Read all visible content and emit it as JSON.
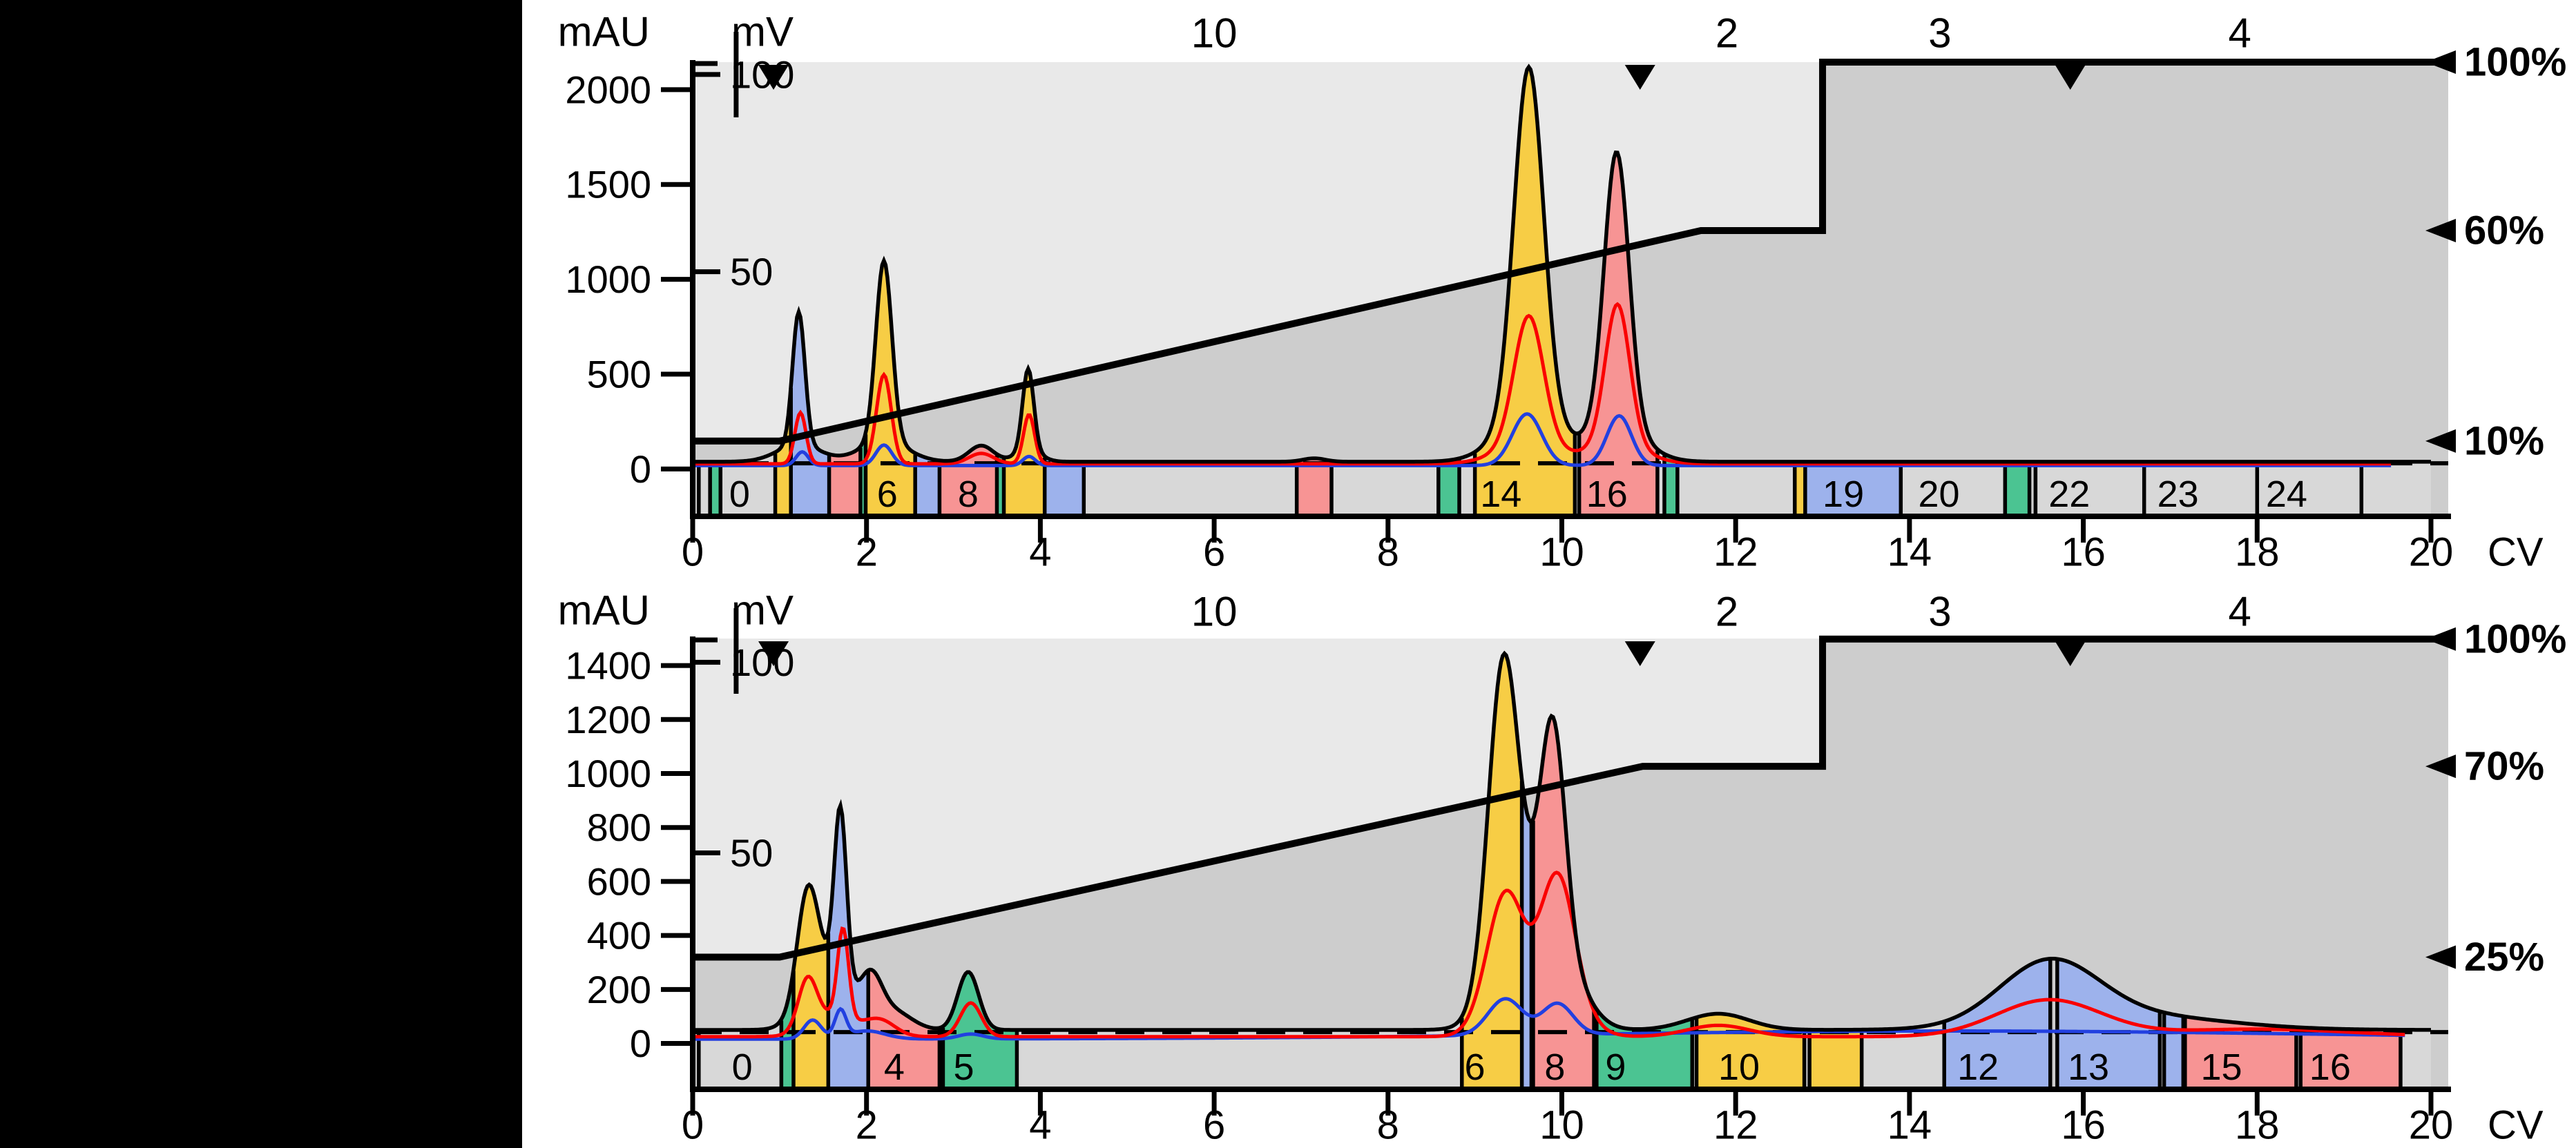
{
  "figure": {
    "kind": "dual-panel chromatogram (ion-exchange purification, UV traces vs column volume)",
    "x_unit_label": "CV",
    "left_axis_label": "mAU",
    "secondary_axis_label": "mV"
  },
  "style": {
    "bg_white": "#ffffff",
    "black": "#000000",
    "bg_above_gradient": "#e9e9e9",
    "bg_below_gradient": "#cdcdcd",
    "fraction_gray": "#d8d8d8",
    "fraction_yellow": "#f7cd45",
    "fraction_red": "#f79494",
    "fraction_blue": "#9db2ec",
    "fraction_green": "#4bc492",
    "trace_red": "#fa0000",
    "trace_blue": "#2240e0",
    "trace_black": "#000000"
  },
  "chart_data": [
    {
      "id": "top-panel",
      "type": "area",
      "title": "",
      "xlabel": "CV",
      "ylabel": "mAU",
      "y2label": "mV",
      "x_ticks": [
        0,
        2,
        4,
        6,
        8,
        10,
        12,
        14,
        16,
        18,
        20
      ],
      "xlim": [
        0,
        20
      ],
      "ylim": [
        -250,
        2145
      ],
      "y_ticks": [
        0,
        500,
        1000,
        1500,
        2000
      ],
      "mv_ticks": [
        {
          "label": "50",
          "v": 1040
        },
        {
          "label": "100",
          "v": 2080
        }
      ],
      "pct_map": {
        "p0_v": -75,
        "p100_v": 2145
      },
      "right_labels": [
        {
          "pct": 100,
          "text": "100%"
        },
        {
          "pct": 60,
          "text": "60%"
        },
        {
          "pct": 10,
          "text": "10%"
        }
      ],
      "header_labels": [
        {
          "cv": 6.0,
          "text": "10"
        },
        {
          "cv": 11.9,
          "text": "2"
        },
        {
          "cv": 14.35,
          "text": "3"
        },
        {
          "cv": 17.8,
          "text": "4"
        }
      ],
      "down_markers_cv": [
        0.93,
        10.9,
        15.85
      ],
      "event_tick_cv": 0.5,
      "dashed_v": 30,
      "gradient_pct": [
        [
          0,
          10
        ],
        [
          1,
          10
        ],
        [
          11.6,
          60
        ],
        [
          13,
          60
        ],
        [
          13,
          100
        ],
        [
          20.2,
          100
        ]
      ],
      "curves": {
        "black": {
          "base": 38,
          "end": 20,
          "peaks": [
            [
              1.22,
              700,
              0.1
            ],
            [
              1.22,
              90,
              0.35
            ],
            [
              2.2,
              950,
              0.13
            ],
            [
              2.2,
              110,
              0.38
            ],
            [
              3.32,
              85,
              0.2
            ],
            [
              3.86,
              430,
              0.09
            ],
            [
              3.86,
              60,
              0.2
            ],
            [
              7.15,
              18,
              0.18
            ],
            [
              9.62,
              1850,
              0.24
            ],
            [
              9.62,
              230,
              0.5
            ],
            [
              10.63,
              1450,
              0.2
            ],
            [
              10.63,
              180,
              0.45
            ]
          ]
        },
        "red": {
          "base": 27,
          "end": 19.55,
          "peaks": [
            [
              1.24,
              270,
              0.09
            ],
            [
              2.2,
              470,
              0.12
            ],
            [
              3.32,
              55,
              0.2
            ],
            [
              3.87,
              260,
              0.09
            ],
            [
              9.62,
              680,
              0.24
            ],
            [
              9.62,
              100,
              0.5
            ],
            [
              10.64,
              740,
              0.2
            ],
            [
              10.64,
              100,
              0.45
            ]
          ]
        },
        "blue": {
          "base": 18,
          "end": 19.55,
          "peaks": [
            [
              1.26,
              72,
              0.1
            ],
            [
              2.2,
              108,
              0.13
            ],
            [
              3.87,
              48,
              0.1
            ],
            [
              9.6,
              272,
              0.24
            ],
            [
              10.66,
              262,
              0.2
            ]
          ]
        }
      },
      "fractions": [
        {
          "x0": 0.07,
          "x1": 0.2,
          "color": "gray",
          "label": ""
        },
        {
          "x0": 0.2,
          "x1": 0.32,
          "color": "green",
          "label": ""
        },
        {
          "x0": 0.32,
          "x1": 0.95,
          "color": "gray",
          "label": "0",
          "label_cv": 0.42
        },
        {
          "x0": 0.95,
          "x1": 1.13,
          "color": "yellow",
          "label": ""
        },
        {
          "x0": 1.13,
          "x1": 1.57,
          "color": "blue",
          "label": ""
        },
        {
          "x0": 1.57,
          "x1": 1.93,
          "color": "red",
          "label": ""
        },
        {
          "x0": 1.93,
          "x1": 1.99,
          "color": "green",
          "label": ""
        },
        {
          "x0": 1.99,
          "x1": 2.56,
          "color": "yellow",
          "label": "6",
          "label_cv": 2.12
        },
        {
          "x0": 2.56,
          "x1": 2.84,
          "color": "blue",
          "label": ""
        },
        {
          "x0": 2.84,
          "x1": 3.5,
          "color": "red",
          "label": "8",
          "label_cv": 3.05
        },
        {
          "x0": 3.5,
          "x1": 3.58,
          "color": "green",
          "label": ""
        },
        {
          "x0": 3.58,
          "x1": 4.05,
          "color": "yellow",
          "label": ""
        },
        {
          "x0": 4.05,
          "x1": 4.5,
          "color": "blue",
          "label": ""
        },
        {
          "x0": 4.5,
          "x1": 6.95,
          "color": "gray",
          "label": ""
        },
        {
          "x0": 6.95,
          "x1": 7.35,
          "color": "red",
          "label": ""
        },
        {
          "x0": 7.35,
          "x1": 8.58,
          "color": "gray",
          "label": ""
        },
        {
          "x0": 8.58,
          "x1": 8.82,
          "color": "green",
          "label": ""
        },
        {
          "x0": 8.82,
          "x1": 9.0,
          "color": "gray",
          "label": ""
        },
        {
          "x0": 9.0,
          "x1": 10.15,
          "color": "yellow",
          "label": "14",
          "label_cv": 9.06
        },
        {
          "x0": 10.2,
          "x1": 11.1,
          "color": "red",
          "label": "16",
          "label_cv": 10.28
        },
        {
          "x0": 11.1,
          "x1": 11.18,
          "color": "gray",
          "label": ""
        },
        {
          "x0": 11.18,
          "x1": 11.33,
          "color": "green",
          "label": ""
        },
        {
          "x0": 11.33,
          "x1": 12.68,
          "color": "gray",
          "label": ""
        },
        {
          "x0": 12.68,
          "x1": 12.8,
          "color": "yellow",
          "label": ""
        },
        {
          "x0": 12.8,
          "x1": 13.9,
          "color": "blue",
          "label": "19",
          "label_cv": 13.0
        },
        {
          "x0": 13.9,
          "x1": 15.1,
          "color": "gray",
          "label": "20",
          "label_cv": 14.1
        },
        {
          "x0": 15.1,
          "x1": 15.38,
          "color": "green",
          "label": ""
        },
        {
          "x0": 15.45,
          "x1": 16.7,
          "color": "gray",
          "label": "22",
          "label_cv": 15.6
        },
        {
          "x0": 16.7,
          "x1": 18.0,
          "color": "gray",
          "label": "23",
          "label_cv": 16.85
        },
        {
          "x0": 18.0,
          "x1": 19.2,
          "color": "gray",
          "label": "24",
          "label_cv": 18.1
        },
        {
          "x0": 19.2,
          "x1": 20.0,
          "color": "gray",
          "label": ""
        }
      ]
    },
    {
      "id": "bottom-panel",
      "type": "area",
      "title": "",
      "xlabel": "CV",
      "ylabel": "mAU",
      "y2label": "mV",
      "x_ticks": [
        0,
        2,
        4,
        6,
        8,
        10,
        12,
        14,
        16,
        18,
        20
      ],
      "xlim": [
        0,
        20
      ],
      "ylim": [
        -170,
        1500
      ],
      "y_ticks": [
        0,
        200,
        400,
        600,
        800,
        1000,
        1200,
        1400
      ],
      "mv_ticks": [
        {
          "label": "50",
          "v": 706
        },
        {
          "label": "100",
          "v": 1412
        }
      ],
      "pct_map": {
        "p0_v": -73,
        "p100_v": 1498
      },
      "right_labels": [
        {
          "pct": 100,
          "text": "100%"
        },
        {
          "pct": 70,
          "text": "70%"
        },
        {
          "pct": 25,
          "text": "25%"
        }
      ],
      "header_labels": [
        {
          "cv": 6.0,
          "text": "10"
        },
        {
          "cv": 11.9,
          "text": "2"
        },
        {
          "cv": 14.35,
          "text": "3"
        },
        {
          "cv": 17.8,
          "text": "4"
        }
      ],
      "down_markers_cv": [
        0.93,
        10.9,
        15.85
      ],
      "event_tick_cv": 0.5,
      "dashed_v": 42,
      "gradient_pct": [
        [
          0,
          25
        ],
        [
          1,
          25
        ],
        [
          10.93,
          70
        ],
        [
          13,
          70
        ],
        [
          13,
          100
        ],
        [
          20.2,
          100
        ]
      ],
      "curves": {
        "black": {
          "base": 50,
          "end": 20,
          "peaks": [
            [
              1.32,
              390,
              0.17
            ],
            [
              1.7,
              640,
              0.1
            ],
            [
              1.55,
              220,
              0.35
            ],
            [
              2.05,
              160,
              0.18
            ],
            [
              2.3,
              70,
              0.3
            ],
            [
              3.17,
              215,
              0.17
            ],
            [
              9.32,
              1100,
              0.24
            ],
            [
              9.9,
              800,
              0.2
            ],
            [
              9.6,
              420,
              0.45
            ],
            [
              10.1,
              120,
              0.35
            ],
            [
              11.8,
              60,
              0.5
            ],
            [
              15.6,
              225,
              0.8
            ],
            [
              16.5,
              55,
              1.5
            ]
          ]
        },
        "red": {
          "base": 25,
          "end": 19.7,
          "peaks": [
            [
              1.32,
              180,
              0.15
            ],
            [
              1.73,
              330,
              0.09
            ],
            [
              1.6,
              80,
              0.35
            ],
            [
              2.15,
              60,
              0.25
            ],
            [
              3.2,
              125,
              0.17
            ],
            [
              9.35,
              480,
              0.3
            ],
            [
              9.95,
              520,
              0.28
            ],
            [
              9.6,
              70,
              0.5
            ],
            [
              10.15,
              50,
              0.35
            ],
            [
              11.8,
              42,
              0.5
            ],
            [
              15.6,
              135,
              0.85
            ],
            [
              18.0,
              28,
              1.5
            ]
          ]
        },
        "blue": {
          "base": 16,
          "end": 19.7,
          "peaks": [
            [
              1.38,
              70,
              0.14
            ],
            [
              1.7,
              100,
              0.09
            ],
            [
              2.0,
              30,
              0.3
            ],
            [
              3.2,
              18,
              0.2
            ],
            [
              9.35,
              135,
              0.28
            ],
            [
              9.95,
              115,
              0.25
            ],
            [
              14.5,
              30,
              6.0
            ]
          ]
        }
      },
      "fractions": [
        {
          "x0": 0.07,
          "x1": 1.02,
          "color": "gray",
          "label": "0",
          "label_cv": 0.45
        },
        {
          "x0": 1.02,
          "x1": 1.16,
          "color": "green",
          "label": ""
        },
        {
          "x0": 1.16,
          "x1": 1.56,
          "color": "yellow",
          "label": ""
        },
        {
          "x0": 1.56,
          "x1": 2.02,
          "color": "blue",
          "label": ""
        },
        {
          "x0": 2.02,
          "x1": 2.84,
          "color": "red",
          "label": "4",
          "label_cv": 2.2
        },
        {
          "x0": 2.88,
          "x1": 3.73,
          "color": "green",
          "label": "5",
          "label_cv": 3.0
        },
        {
          "x0": 3.73,
          "x1": 8.85,
          "color": "gray",
          "label": ""
        },
        {
          "x0": 8.85,
          "x1": 9.54,
          "color": "yellow",
          "label": "6",
          "label_cv": 8.88
        },
        {
          "x0": 9.54,
          "x1": 9.65,
          "color": "blue",
          "label": ""
        },
        {
          "x0": 9.67,
          "x1": 10.37,
          "color": "red",
          "label": "8",
          "label_cv": 9.8
        },
        {
          "x0": 10.4,
          "x1": 11.5,
          "color": "green",
          "label": "9",
          "label_cv": 10.5
        },
        {
          "x0": 11.55,
          "x1": 12.79,
          "color": "yellow",
          "label": "10",
          "label_cv": 11.8
        },
        {
          "x0": 12.85,
          "x1": 13.45,
          "color": "yellow",
          "label": ""
        },
        {
          "x0": 13.45,
          "x1": 14.4,
          "color": "gray",
          "label": ""
        },
        {
          "x0": 14.4,
          "x1": 15.62,
          "color": "blue",
          "label": "12",
          "label_cv": 14.55
        },
        {
          "x0": 15.7,
          "x1": 16.88,
          "color": "blue",
          "label": "13",
          "label_cv": 15.82
        },
        {
          "x0": 16.93,
          "x1": 17.15,
          "color": "blue",
          "label": ""
        },
        {
          "x0": 17.17,
          "x1": 18.45,
          "color": "red",
          "label": "15",
          "label_cv": 17.35
        },
        {
          "x0": 18.5,
          "x1": 19.65,
          "color": "red",
          "label": "16",
          "label_cv": 18.6
        },
        {
          "x0": 19.65,
          "x1": 20.0,
          "color": "gray",
          "label": ""
        }
      ]
    }
  ]
}
